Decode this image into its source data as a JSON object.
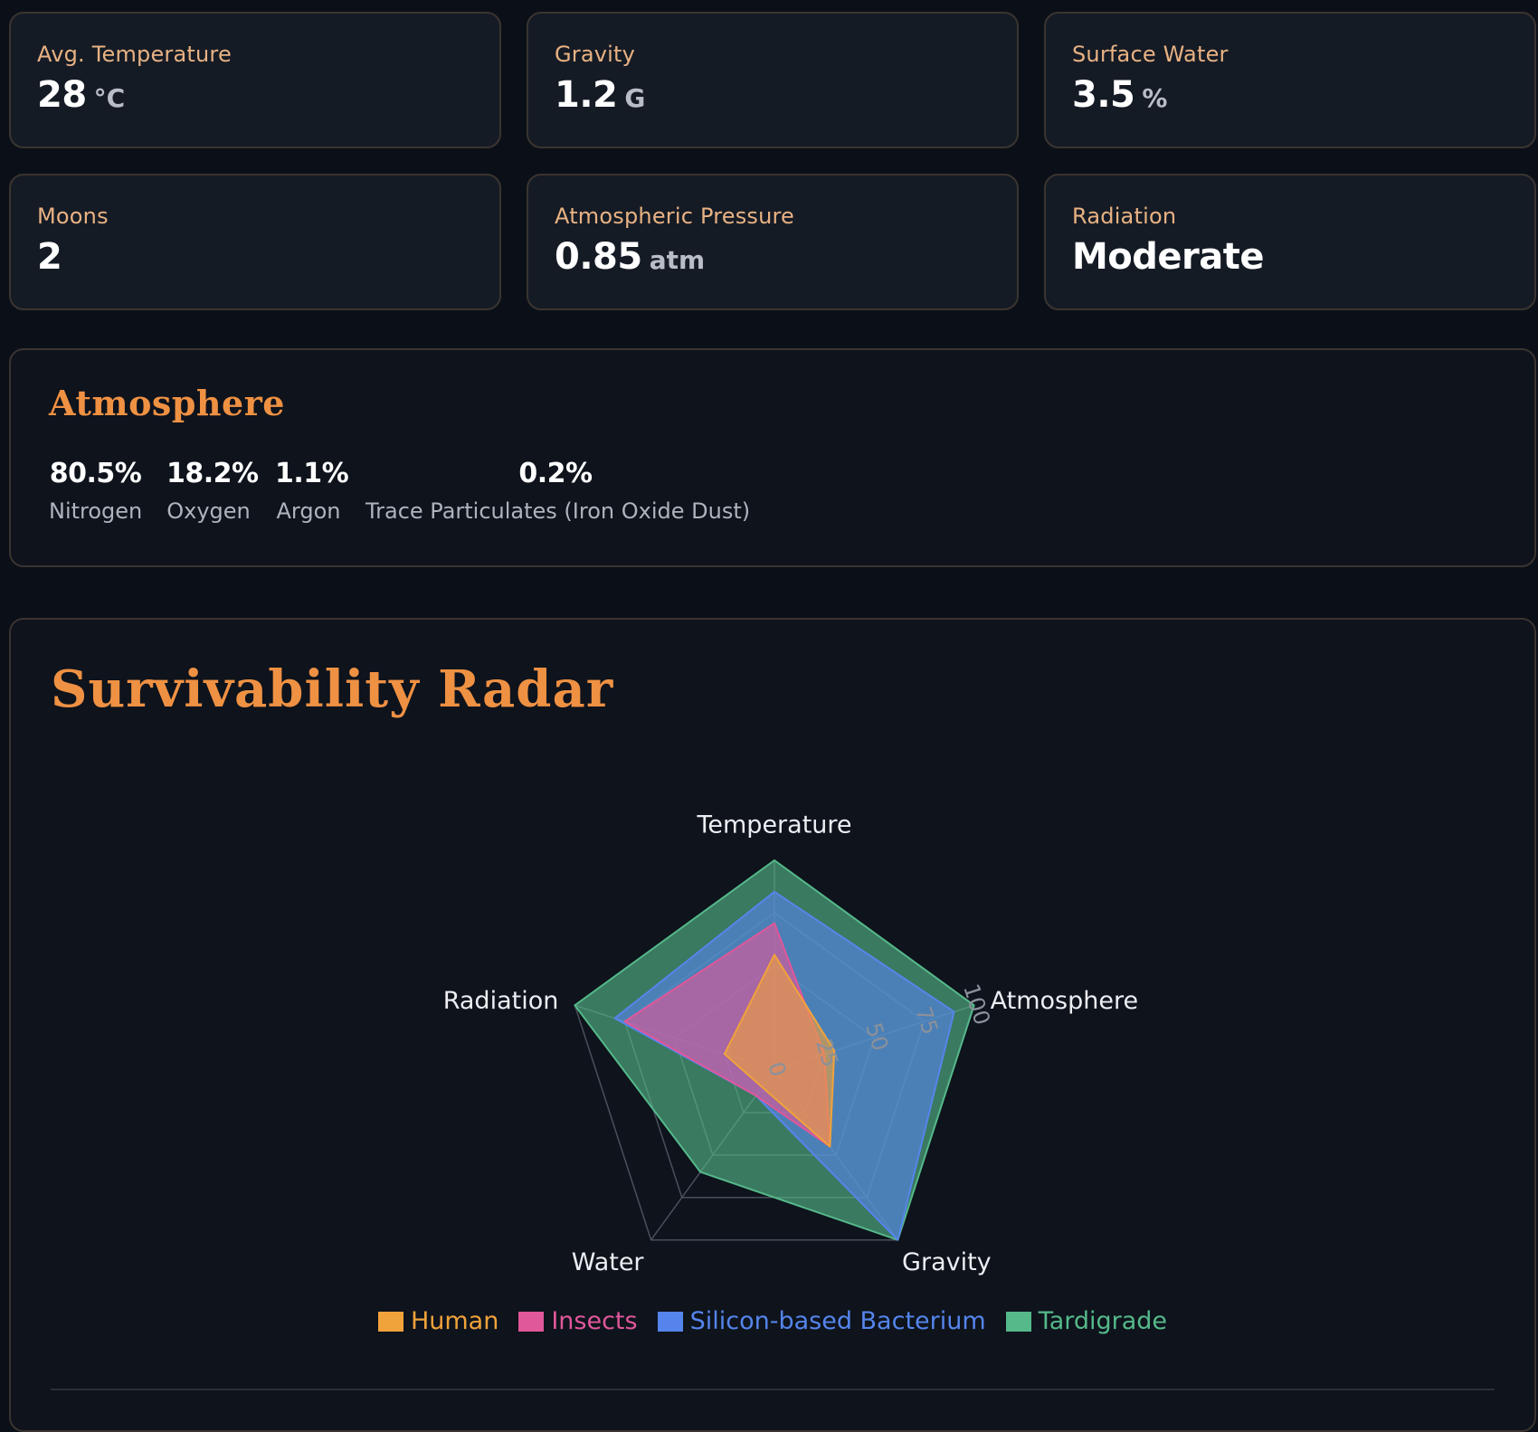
{
  "stats": [
    {
      "label": "Avg. Temperature",
      "value": "28",
      "unit": "°C"
    },
    {
      "label": "Gravity",
      "value": "1.2",
      "unit": "G"
    },
    {
      "label": "Surface Water",
      "value": "3.5",
      "unit": "%"
    },
    {
      "label": "Moons",
      "value": "2",
      "unit": ""
    },
    {
      "label": "Atmospheric Pressure",
      "value": "0.85",
      "unit": "atm"
    },
    {
      "label": "Radiation",
      "value": "Moderate",
      "unit": ""
    }
  ],
  "atmosphere": {
    "title": "Atmosphere",
    "gases": [
      {
        "percent": "80.5%",
        "name": "Nitrogen"
      },
      {
        "percent": "18.2%",
        "name": "Oxygen"
      },
      {
        "percent": "1.1%",
        "name": "Argon"
      },
      {
        "percent": "0.2%",
        "name": "Trace Particulates (Iron Oxide Dust)"
      }
    ]
  },
  "radar": {
    "title": "Survivability Radar"
  },
  "chart_data": {
    "type": "radar",
    "axes": [
      "Temperature",
      "Atmosphere",
      "Gravity",
      "Water",
      "Radiation"
    ],
    "range": [
      0,
      100
    ],
    "ticks": [
      0,
      25,
      50,
      75,
      100
    ],
    "tick_labels": [
      "0",
      "25",
      "50",
      "75",
      "100"
    ],
    "series": [
      {
        "name": "Human",
        "color": "#f0a23b",
        "values": [
          55,
          30,
          45,
          10,
          25
        ]
      },
      {
        "name": "Insects",
        "color": "#e0579a",
        "values": [
          70,
          25,
          45,
          15,
          75
        ]
      },
      {
        "name": "Silicon-based Bacterium",
        "color": "#5585ec",
        "values": [
          85,
          90,
          100,
          15,
          80
        ]
      },
      {
        "name": "Tardigrade",
        "color": "#55b98a",
        "values": [
          100,
          100,
          100,
          60,
          100
        ]
      }
    ],
    "legend": "bottom"
  },
  "colors": {
    "accent": "#ef9143",
    "label": "#e8b283",
    "background": "#0b1018",
    "card": "#151b25"
  }
}
